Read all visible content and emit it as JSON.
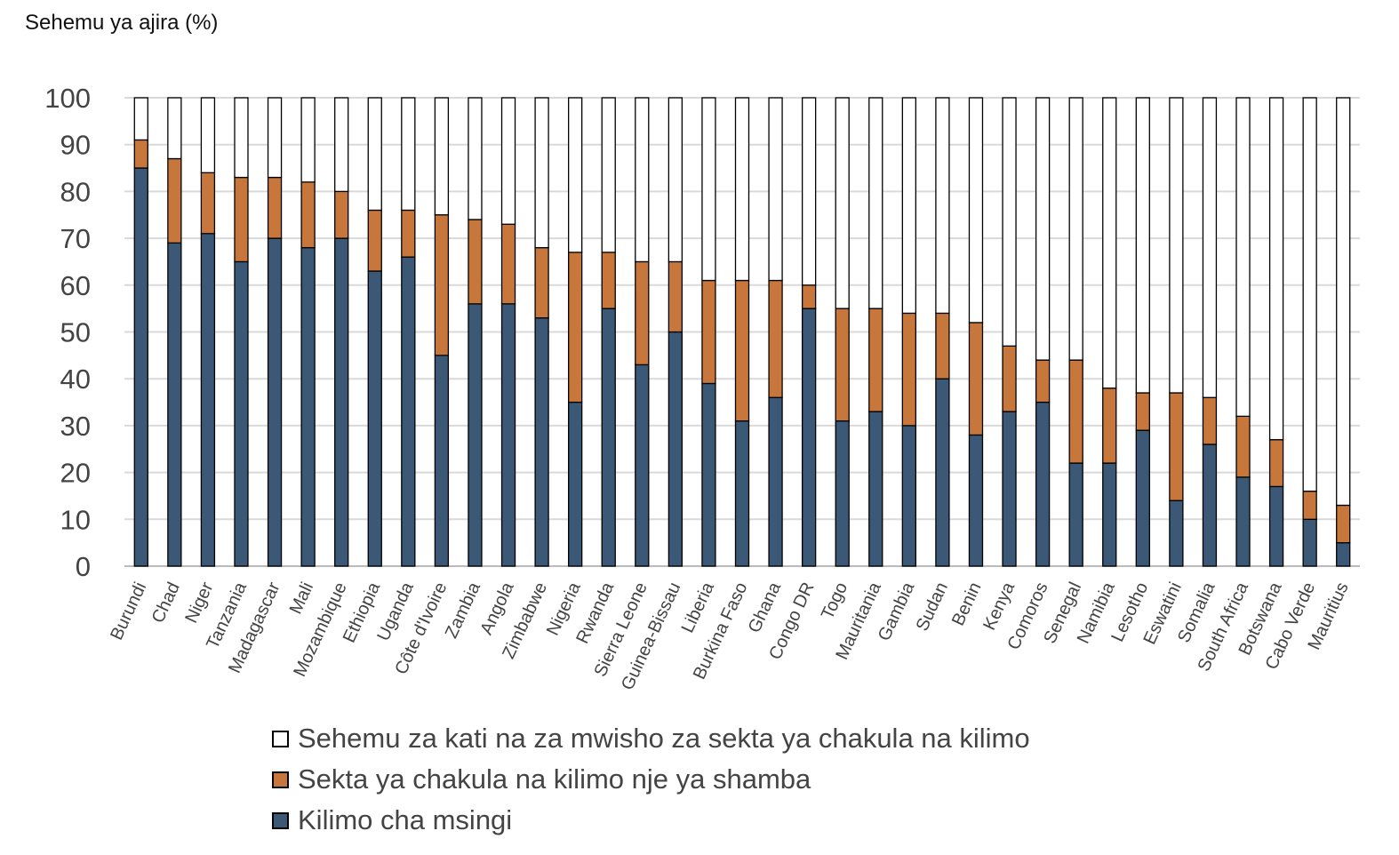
{
  "chart_data": {
    "type": "bar",
    "stacked": true,
    "title": "",
    "ylabel": "Sehemu ya ajira (%)",
    "xlabel": "",
    "ylim": [
      0,
      100
    ],
    "yticks": [
      0,
      10,
      20,
      30,
      40,
      50,
      60,
      70,
      80,
      90,
      100
    ],
    "grid": true,
    "legend_position": "bottom",
    "categories": [
      "Burundi",
      "Chad",
      "Niger",
      "Tanzania",
      "Madagascar",
      "Mali",
      "Mozambique",
      "Ethiopia",
      "Uganda",
      "Côte d'Ivoire",
      "Zambia",
      "Angola",
      "Zimbabwe",
      "Nigeria",
      "Rwanda",
      "Sierra Leone",
      "Guinea-Bissau",
      "Liberia",
      "Burkina Faso",
      "Ghana",
      "Congo DR",
      "Togo",
      "Mauritania",
      "Gambia",
      "Sudan",
      "Benin",
      "Kenya",
      "Comoros",
      "Senegal",
      "Namibia",
      "Lesotho",
      "Eswatini",
      "Somalia",
      "South Africa",
      "Botswana",
      "Cabo Verde",
      "Mauritius"
    ],
    "series": [
      {
        "name": "Kilimo cha msingi",
        "color": "#3b5876",
        "values": [
          85,
          69,
          71,
          65,
          70,
          68,
          70,
          63,
          66,
          45,
          56,
          56,
          53,
          35,
          55,
          43,
          50,
          39,
          31,
          36,
          55,
          31,
          33,
          30,
          40,
          28,
          33,
          35,
          22,
          22,
          29,
          14,
          26,
          19,
          17,
          10,
          5
        ]
      },
      {
        "name": "Sekta ya chakula na kilimo nje ya shamba",
        "color": "#c8773c",
        "values": [
          6,
          18,
          13,
          18,
          13,
          14,
          10,
          13,
          10,
          30,
          18,
          17,
          15,
          32,
          12,
          22,
          15,
          22,
          30,
          25,
          5,
          24,
          22,
          24,
          14,
          24,
          14,
          9,
          22,
          16,
          8,
          23,
          10,
          13,
          10,
          6,
          8
        ]
      },
      {
        "name": "Sehemu za kati na za mwisho za sekta ya chakula na kilimo",
        "color": "#ffffff",
        "values": [
          9,
          13,
          16,
          17,
          17,
          18,
          20,
          24,
          24,
          25,
          26,
          27,
          32,
          33,
          33,
          35,
          35,
          39,
          39,
          39,
          40,
          45,
          45,
          46,
          46,
          48,
          53,
          56,
          56,
          62,
          63,
          63,
          64,
          68,
          73,
          84,
          87
        ]
      }
    ]
  }
}
